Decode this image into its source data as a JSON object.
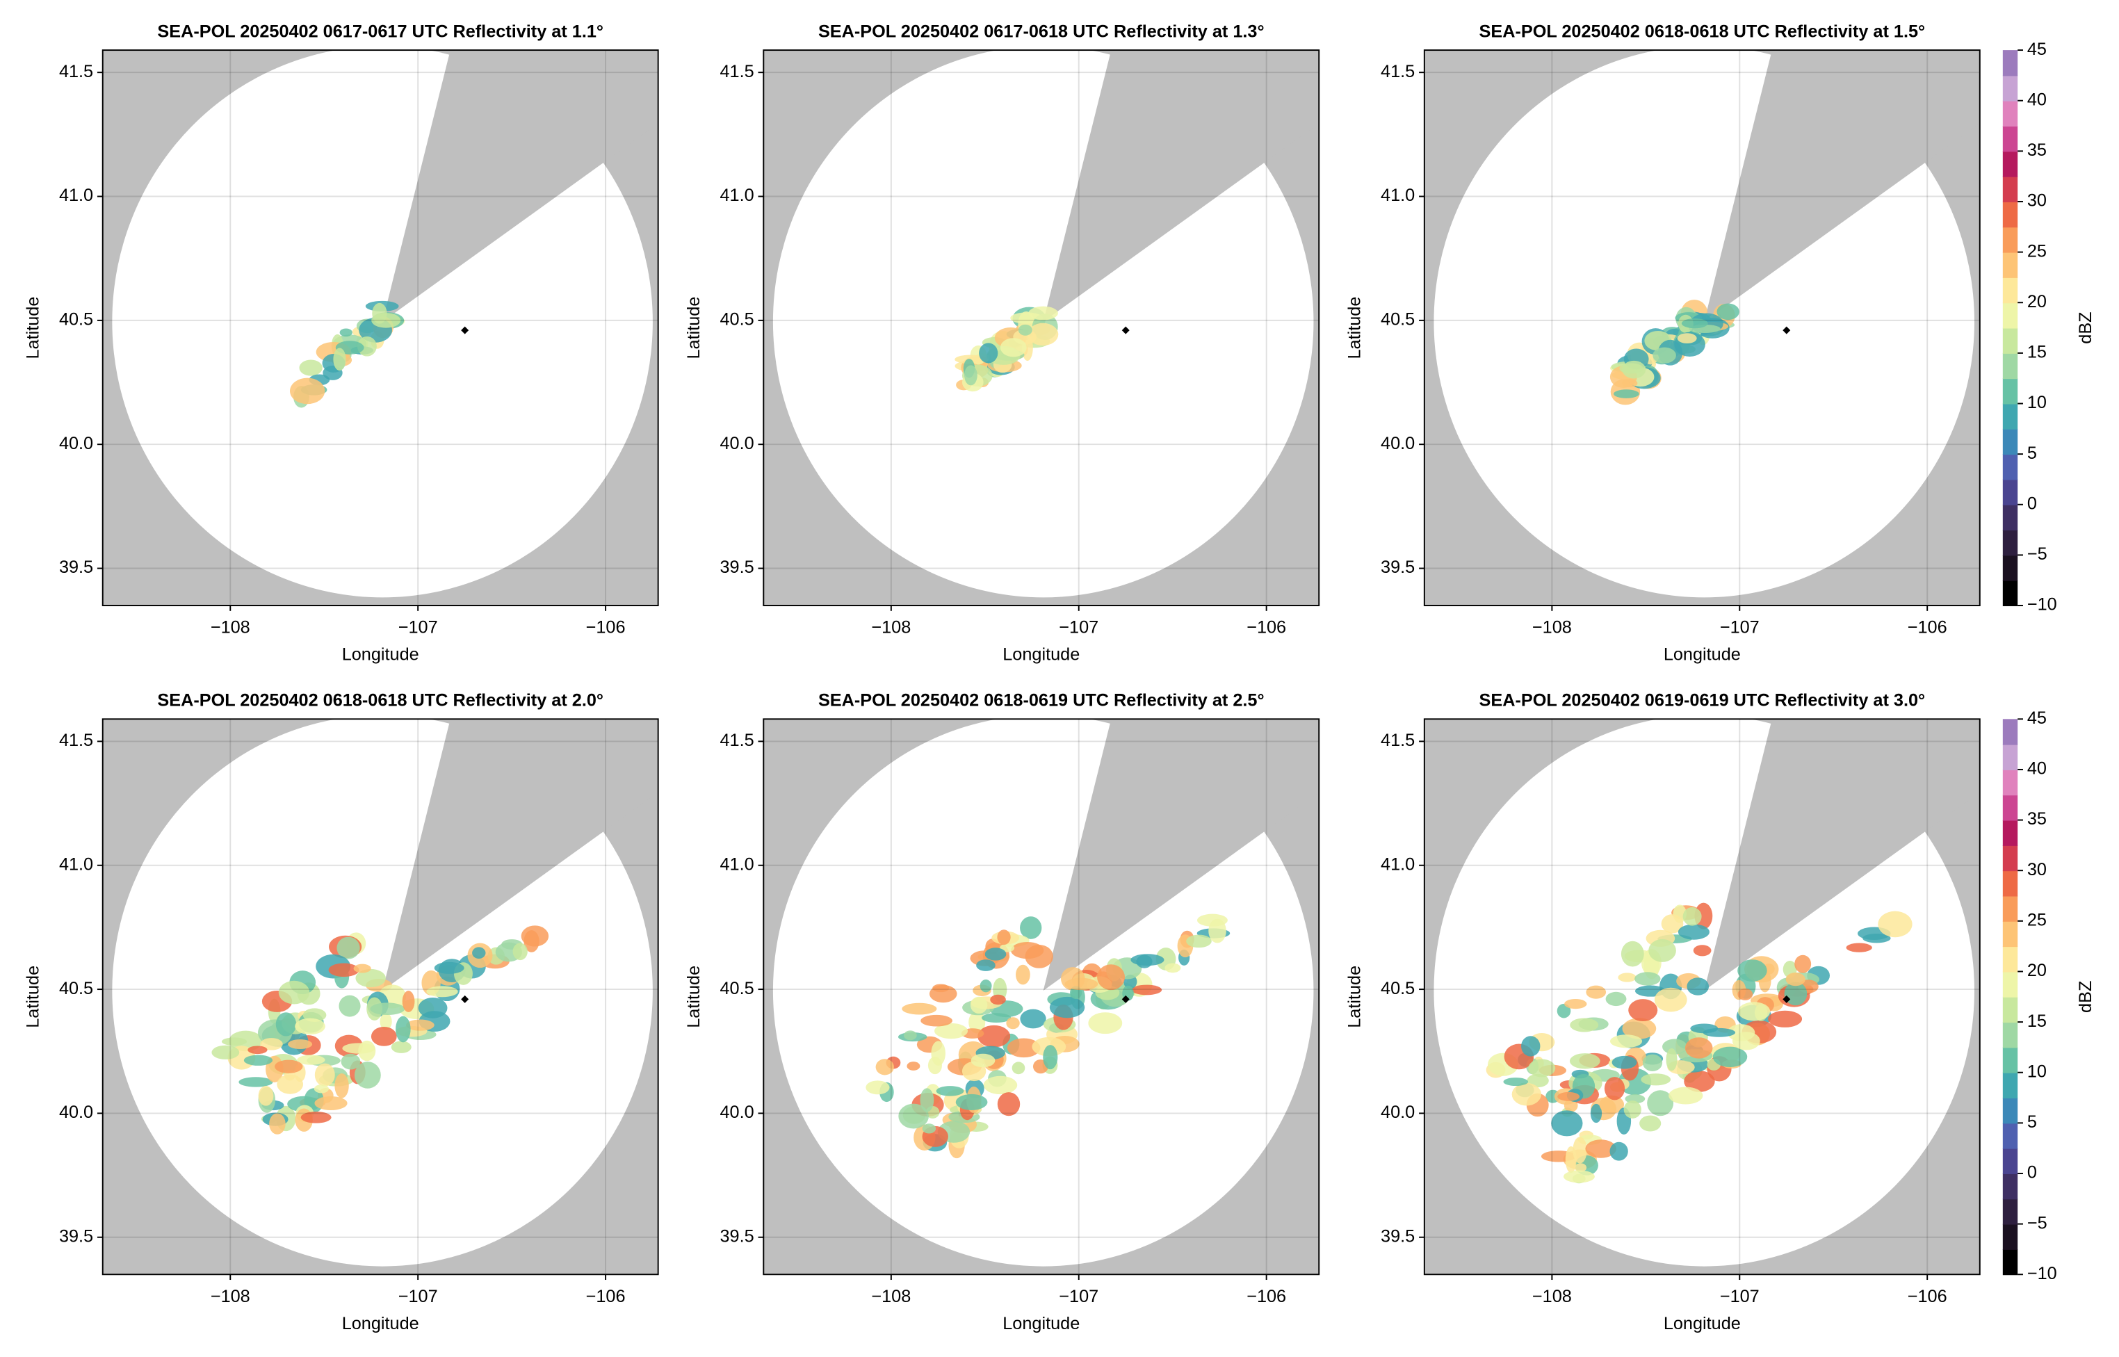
{
  "chart_data": [
    {
      "type": "radar",
      "title": "SEA-POL 20250402 0617-0617 UTC Reflectivity at 1.1°",
      "xlabel": "Longitude",
      "ylabel": "Latitude",
      "xlim": [
        -108.68,
        -105.72
      ],
      "ylim": [
        39.35,
        41.59
      ],
      "xticks": [
        {
          "value": -108,
          "label": "−108"
        },
        {
          "value": -107,
          "label": "−107"
        },
        {
          "value": -106,
          "label": "−106"
        }
      ],
      "yticks": [
        39.5,
        {
          "value": 40.0,
          "label": "40.0"
        },
        40.5,
        {
          "value": 41.0,
          "label": "41.0"
        },
        41.5
      ],
      "points": {
        "x": [
          -106.75
        ],
        "y": [
          40.46
        ]
      },
      "grid": true
    },
    {
      "type": "radar",
      "title": "SEA-POL 20250402 0617-0618 UTC Reflectivity at 1.3°",
      "xlabel": "Longitude",
      "ylabel": "Latitude",
      "xlim": [
        -108.68,
        -105.72
      ],
      "ylim": [
        39.35,
        41.59
      ],
      "xticks": [
        {
          "value": -108,
          "label": "−108"
        },
        {
          "value": -107,
          "label": "−107"
        },
        {
          "value": -106,
          "label": "−106"
        }
      ],
      "yticks": [
        39.5,
        {
          "value": 40.0,
          "label": "40.0"
        },
        40.5,
        {
          "value": 41.0,
          "label": "41.0"
        },
        41.5
      ],
      "points": {
        "x": [
          -106.75
        ],
        "y": [
          40.46
        ]
      },
      "grid": true
    },
    {
      "type": "radar",
      "title": "SEA-POL 20250402 0618-0618 UTC Reflectivity at 1.5°",
      "xlabel": "Longitude",
      "ylabel": "Latitude",
      "xlim": [
        -108.68,
        -105.72
      ],
      "ylim": [
        39.35,
        41.59
      ],
      "xticks": [
        {
          "value": -108,
          "label": "−108"
        },
        {
          "value": -107,
          "label": "−107"
        },
        {
          "value": -106,
          "label": "−106"
        }
      ],
      "yticks": [
        39.5,
        {
          "value": 40.0,
          "label": "40.0"
        },
        40.5,
        {
          "value": 41.0,
          "label": "41.0"
        },
        41.5
      ],
      "points": {
        "x": [
          -106.75
        ],
        "y": [
          40.46
        ]
      },
      "grid": true,
      "colorbar": {
        "label": "dBZ",
        "lim": [
          -10,
          45
        ],
        "ticks": [
          {
            "value": -10,
            "label": "−10"
          },
          {
            "value": -5,
            "label": "−5"
          },
          0,
          5,
          10,
          15,
          20,
          25,
          30,
          35,
          40,
          45
        ],
        "colors": [
          "#000000",
          "#1a1020",
          "#2e1f3f",
          "#3e2f63",
          "#4a4490",
          "#4f60b0",
          "#3c88b8",
          "#3fa7b0",
          "#66c2a5",
          "#9fd8a4",
          "#c8e89e",
          "#eef5a8",
          "#fde89a",
          "#fdc476",
          "#f99c5a",
          "#ee6a45",
          "#d43d4f",
          "#b5195e",
          "#cc4592",
          "#e082bd",
          "#c7a3d4",
          "#9c7bbd"
        ]
      }
    },
    {
      "type": "radar",
      "title": "SEA-POL 20250402 0618-0618 UTC Reflectivity at 2.0°",
      "xlabel": "Longitude",
      "ylabel": "Latitude",
      "xlim": [
        -108.68,
        -105.72
      ],
      "ylim": [
        39.35,
        41.59
      ],
      "xticks": [
        {
          "value": -108,
          "label": "−108"
        },
        {
          "value": -107,
          "label": "−107"
        },
        {
          "value": -106,
          "label": "−106"
        }
      ],
      "yticks": [
        39.5,
        {
          "value": 40.0,
          "label": "40.0"
        },
        40.5,
        {
          "value": 41.0,
          "label": "41.0"
        },
        41.5
      ],
      "points": {
        "x": [
          -106.75
        ],
        "y": [
          40.46
        ]
      },
      "grid": true
    },
    {
      "type": "radar",
      "title": "SEA-POL 20250402 0618-0619 UTC Reflectivity at 2.5°",
      "xlabel": "Longitude",
      "ylabel": "Latitude",
      "xlim": [
        -108.68,
        -105.72
      ],
      "ylim": [
        39.35,
        41.59
      ],
      "xticks": [
        {
          "value": -108,
          "label": "−108"
        },
        {
          "value": -107,
          "label": "−107"
        },
        {
          "value": -106,
          "label": "−106"
        }
      ],
      "yticks": [
        39.5,
        {
          "value": 40.0,
          "label": "40.0"
        },
        40.5,
        {
          "value": 41.0,
          "label": "41.0"
        },
        41.5
      ],
      "points": {
        "x": [
          -106.75
        ],
        "y": [
          40.46
        ]
      },
      "grid": true
    },
    {
      "type": "radar",
      "title": "SEA-POL 20250402 0619-0619 UTC Reflectivity at 3.0°",
      "xlabel": "Longitude",
      "ylabel": "Latitude",
      "xlim": [
        -108.68,
        -105.72
      ],
      "ylim": [
        39.35,
        41.59
      ],
      "xticks": [
        {
          "value": -108,
          "label": "−108"
        },
        {
          "value": -107,
          "label": "−107"
        },
        {
          "value": -106,
          "label": "−106"
        }
      ],
      "yticks": [
        39.5,
        {
          "value": 40.0,
          "label": "40.0"
        },
        40.5,
        {
          "value": 41.0,
          "label": "41.0"
        },
        41.5
      ],
      "points": {
        "x": [
          -106.75
        ],
        "y": [
          40.46
        ]
      },
      "grid": true,
      "colorbar": {
        "label": "dBZ",
        "lim": [
          -10,
          45
        ],
        "ticks": [
          {
            "value": -10,
            "label": "−10"
          },
          {
            "value": -5,
            "label": "−5"
          },
          0,
          5,
          10,
          15,
          20,
          25,
          30,
          35,
          40,
          45
        ],
        "colors": [
          "#000000",
          "#1a1020",
          "#2e1f3f",
          "#3e2f63",
          "#4a4490",
          "#4f60b0",
          "#3c88b8",
          "#3fa7b0",
          "#66c2a5",
          "#9fd8a4",
          "#c8e89e",
          "#eef5a8",
          "#fde89a",
          "#fdc476",
          "#f99c5a",
          "#ee6a45",
          "#d43d4f",
          "#b5195e",
          "#cc4592",
          "#e082bd",
          "#c7a3d4",
          "#9c7bbd"
        ]
      }
    }
  ]
}
